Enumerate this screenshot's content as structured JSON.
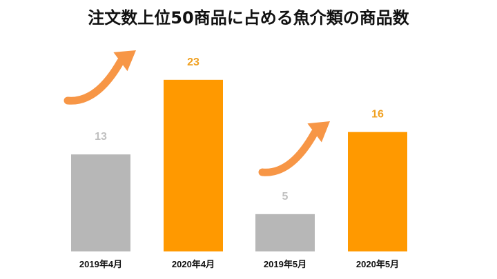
{
  "chart_data": {
    "type": "bar",
    "title": "注文数上位50商品に占める魚介類の商品数",
    "xlabel": "",
    "ylabel": "",
    "ylim": [
      0,
      30
    ],
    "grid": false,
    "categories": [
      "2019年4月",
      "2020年4月",
      "2019年5月",
      "2020年5月"
    ],
    "values": [
      13,
      23,
      5,
      16
    ],
    "bar_colors": [
      "#b7b7b7",
      "#ff9900",
      "#b7b7b7",
      "#ff9900"
    ],
    "label_colors": [
      "#c0c0c0",
      "#f0a020",
      "#c0c0c0",
      "#f0a020"
    ],
    "arrow_color": "#f79646"
  }
}
